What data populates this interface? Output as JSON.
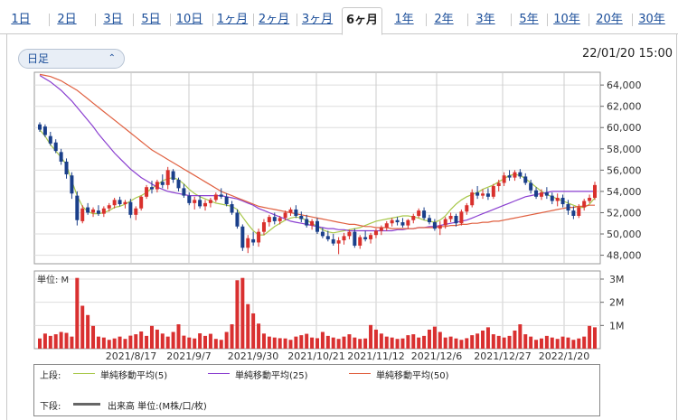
{
  "tabs": [
    "1日",
    "2日",
    "3日",
    "5日",
    "10日",
    "1ヶ月",
    "2ヶ月",
    "3ヶ月",
    "6ヶ月",
    "1年",
    "2年",
    "3年",
    "5年",
    "10年",
    "20年",
    "30年"
  ],
  "active_tab": "6ヶ月",
  "period_select": {
    "value": "日足",
    "icon": "chevron-updown-icon"
  },
  "timestamp": "22/01/20 15:00",
  "colors": {
    "up": "#d9302c",
    "down": "#1a3f8a",
    "ma5": "#a8c84a",
    "ma25": "#8a3fd0",
    "ma50": "#e06040",
    "volume": "#d93030",
    "link": "#1a4d99"
  },
  "chart_data": {
    "type": "candlestick",
    "price_axis": {
      "ylim": [
        47200,
        65200
      ],
      "ticks": [
        "48,000",
        "50,000",
        "52,000",
        "54,000",
        "56,000",
        "58,000",
        "60,000",
        "62,000",
        "64,000"
      ],
      "tick_values": [
        48000,
        50000,
        52000,
        54000,
        56000,
        58000,
        60000,
        62000,
        64000
      ]
    },
    "x_tick_labels": [
      "2021/8/17",
      "2021/9/7",
      "2021/9/30",
      "2021/10/21",
      "2021/11/12",
      "2021/12/6",
      "2021/12/27",
      "2022/1/20"
    ],
    "volume_axis": {
      "unit_label": "単位: M",
      "ticks": [
        "1M",
        "2M",
        "3M"
      ],
      "tick_values": [
        1,
        2,
        3
      ],
      "ylim": [
        0,
        3.35
      ]
    },
    "series": [
      {
        "name": "単純移動平均(5)",
        "values": [
          59800,
          59200,
          58400,
          57800,
          57200,
          56500,
          55000,
          53600,
          52600,
          52100,
          51900,
          51900,
          52000,
          52200,
          52500,
          52600,
          52800,
          53100,
          53400,
          53600,
          53900,
          54300,
          54600,
          55000,
          55200,
          55300,
          55100,
          54700,
          54200,
          53800,
          53500,
          53300,
          53100,
          52900,
          52800,
          52700,
          52600,
          52300,
          51600,
          50900,
          50300,
          49900,
          49900,
          50300,
          50700,
          51000,
          51300,
          51500,
          51600,
          51500,
          51300,
          51000,
          50700,
          50400,
          50200,
          50100,
          50200,
          50300,
          50400,
          50500,
          50600,
          50800,
          51000,
          51200,
          51300,
          51400,
          51500,
          51600,
          51700,
          51700,
          51600,
          51500,
          51300,
          51200,
          51100,
          51300,
          51700,
          52300,
          52800,
          53200,
          53500,
          53700,
          53900,
          54200,
          54400,
          54600,
          54900,
          55200,
          55500,
          55600,
          55500,
          55200,
          54800,
          54400,
          54000,
          53700,
          53500,
          53300,
          53100,
          52900,
          52700,
          52500,
          52500,
          52800,
          53400
        ]
      },
      {
        "name": "単純移動平均(25)",
        "values": [
          64900,
          64600,
          64300,
          63900,
          63500,
          63000,
          62500,
          61900,
          61300,
          60700,
          60100,
          59400,
          58800,
          58200,
          57600,
          57100,
          56600,
          56100,
          55700,
          55300,
          55000,
          54700,
          54400,
          54200,
          54000,
          53900,
          53800,
          53700,
          53600,
          53600,
          53600,
          53600,
          53600,
          53600,
          53600,
          53500,
          53400,
          53300,
          53100,
          52900,
          52700,
          52400,
          52200,
          52000,
          51800,
          51600,
          51400,
          51200,
          51100,
          51000,
          50900,
          50800,
          50700,
          50600,
          50500,
          50500,
          50400,
          50400,
          50300,
          50300,
          50300,
          50300,
          50300,
          50300,
          50300,
          50300,
          50300,
          50400,
          50400,
          50500,
          50500,
          50600,
          50600,
          50700,
          50700,
          50800,
          50900,
          51000,
          51100,
          51200,
          51300,
          51500,
          51700,
          51900,
          52100,
          52300,
          52500,
          52700,
          52900,
          53100,
          53300,
          53500,
          53600,
          53700,
          53800,
          53900,
          54000,
          54000,
          54000,
          54000,
          54000,
          54000,
          54000,
          54000,
          54000
        ]
      },
      {
        "name": "単純移動平均(50)",
        "values": [
          65000,
          64900,
          64800,
          64600,
          64400,
          64100,
          63800,
          63500,
          63100,
          62700,
          62300,
          61900,
          61500,
          61100,
          60700,
          60300,
          59900,
          59500,
          59100,
          58700,
          58300,
          57900,
          57600,
          57300,
          57000,
          56700,
          56400,
          56100,
          55800,
          55500,
          55200,
          54900,
          54600,
          54300,
          54000,
          53800,
          53600,
          53400,
          53200,
          53000,
          52800,
          52600,
          52500,
          52400,
          52300,
          52200,
          52100,
          52000,
          51900,
          51800,
          51700,
          51600,
          51500,
          51400,
          51300,
          51200,
          51100,
          51000,
          50900,
          50900,
          50800,
          50700,
          50700,
          50600,
          50600,
          50600,
          50500,
          50500,
          50500,
          50500,
          50500,
          50600,
          50600,
          50600,
          50600,
          50700,
          50700,
          50800,
          50800,
          50900,
          50900,
          51000,
          51000,
          51100,
          51100,
          51200,
          51200,
          51300,
          51400,
          51500,
          51600,
          51700,
          51800,
          51900,
          52000,
          52100,
          52200,
          52300,
          52400,
          52500,
          52500,
          52600,
          52600,
          52700,
          52700
        ]
      }
    ],
    "candles": [
      [
        60300,
        60500,
        59600,
        59800
      ],
      [
        60100,
        60300,
        59100,
        59300
      ],
      [
        59200,
        59600,
        58300,
        58500
      ],
      [
        58600,
        58900,
        57600,
        57800
      ],
      [
        57700,
        58000,
        56500,
        56800
      ],
      [
        56800,
        57100,
        55200,
        55600
      ],
      [
        55500,
        55800,
        53300,
        53800
      ],
      [
        53600,
        54000,
        50800,
        51300
      ],
      [
        51200,
        52700,
        51000,
        52400
      ],
      [
        52500,
        52900,
        51800,
        52000
      ],
      [
        52000,
        52500,
        51600,
        52300
      ],
      [
        52200,
        52700,
        51700,
        51900
      ],
      [
        51900,
        52600,
        51600,
        52400
      ],
      [
        52400,
        52900,
        52100,
        52700
      ],
      [
        52700,
        53400,
        52400,
        53200
      ],
      [
        53200,
        53500,
        52600,
        52800
      ],
      [
        52800,
        53200,
        52400,
        53000
      ],
      [
        53000,
        53300,
        51500,
        51800
      ],
      [
        51800,
        52600,
        51300,
        52400
      ],
      [
        52400,
        53600,
        52200,
        53500
      ],
      [
        53500,
        54600,
        53300,
        54400
      ],
      [
        54400,
        55000,
        53800,
        54200
      ],
      [
        54200,
        55100,
        53900,
        54900
      ],
      [
        54900,
        55600,
        54300,
        54600
      ],
      [
        54600,
        56300,
        54200,
        56000
      ],
      [
        55900,
        56100,
        54800,
        55100
      ],
      [
        55100,
        55300,
        54000,
        54300
      ],
      [
        54300,
        54700,
        53400,
        53600
      ],
      [
        53600,
        53900,
        52700,
        52900
      ],
      [
        52900,
        53500,
        52300,
        53200
      ],
      [
        53200,
        53600,
        52400,
        52600
      ],
      [
        52600,
        53200,
        52200,
        52900
      ],
      [
        52900,
        53400,
        52500,
        53200
      ],
      [
        53200,
        53900,
        53000,
        53700
      ],
      [
        53700,
        54300,
        53300,
        53500
      ],
      [
        53500,
        53800,
        52600,
        52800
      ],
      [
        52800,
        53100,
        51800,
        52000
      ],
      [
        52000,
        52300,
        50500,
        50700
      ],
      [
        50700,
        50900,
        48400,
        48700
      ],
      [
        48700,
        49900,
        48200,
        49600
      ],
      [
        49500,
        50200,
        48900,
        49200
      ],
      [
        49200,
        50500,
        48800,
        50200
      ],
      [
        50200,
        51400,
        49900,
        51100
      ],
      [
        51100,
        51800,
        50700,
        51600
      ],
      [
        51600,
        52000,
        50900,
        51200
      ],
      [
        51200,
        51700,
        50900,
        51500
      ],
      [
        51500,
        52200,
        51300,
        52000
      ],
      [
        52000,
        52500,
        51700,
        52300
      ],
      [
        52300,
        52700,
        51500,
        51700
      ],
      [
        51700,
        52100,
        51100,
        51400
      ],
      [
        51400,
        51800,
        50600,
        50800
      ],
      [
        50800,
        51400,
        50400,
        51200
      ],
      [
        51200,
        51500,
        50000,
        50200
      ],
      [
        50200,
        50600,
        49600,
        49800
      ],
      [
        49800,
        50300,
        49300,
        49500
      ],
      [
        49500,
        50000,
        48900,
        49100
      ],
      [
        49100,
        49700,
        48100,
        49400
      ],
      [
        49400,
        50100,
        49000,
        49800
      ],
      [
        49800,
        50400,
        49500,
        50200
      ],
      [
        50200,
        50500,
        48700,
        48900
      ],
      [
        48900,
        49900,
        48600,
        49700
      ],
      [
        49700,
        50300,
        49300,
        49500
      ],
      [
        49500,
        50100,
        49100,
        49900
      ],
      [
        49900,
        50500,
        49600,
        50300
      ],
      [
        50300,
        50800,
        49900,
        50600
      ],
      [
        50600,
        51200,
        50300,
        51000
      ],
      [
        51000,
        51500,
        50700,
        51300
      ],
      [
        51300,
        51600,
        50800,
        51100
      ],
      [
        51100,
        51500,
        50600,
        50800
      ],
      [
        50800,
        51400,
        50500,
        51300
      ],
      [
        51300,
        51900,
        51000,
        51700
      ],
      [
        51700,
        52400,
        51500,
        52200
      ],
      [
        52200,
        52500,
        51300,
        51500
      ],
      [
        51500,
        51800,
        50900,
        51100
      ],
      [
        51100,
        51400,
        50300,
        50500
      ],
      [
        50500,
        51200,
        49900,
        50800
      ],
      [
        50800,
        51600,
        50500,
        51400
      ],
      [
        51400,
        52000,
        51100,
        51700
      ],
      [
        51700,
        51900,
        50700,
        51000
      ],
      [
        51000,
        52300,
        50800,
        52100
      ],
      [
        52100,
        52900,
        51800,
        52700
      ],
      [
        52700,
        54200,
        52500,
        53900
      ],
      [
        53900,
        54500,
        53300,
        53600
      ],
      [
        53600,
        54200,
        53300,
        53800
      ],
      [
        53800,
        54300,
        53200,
        53500
      ],
      [
        53500,
        54700,
        53300,
        54500
      ],
      [
        54500,
        55100,
        54000,
        54800
      ],
      [
        54800,
        55800,
        54500,
        55500
      ],
      [
        55500,
        56000,
        55000,
        55300
      ],
      [
        55300,
        56000,
        55000,
        55800
      ],
      [
        55800,
        56100,
        55200,
        55400
      ],
      [
        55400,
        55700,
        54600,
        54800
      ],
      [
        54800,
        55100,
        53800,
        54100
      ],
      [
        54100,
        54400,
        53300,
        53500
      ],
      [
        53500,
        54200,
        53200,
        53900
      ],
      [
        53900,
        54400,
        53300,
        53600
      ],
      [
        53600,
        53900,
        52800,
        53100
      ],
      [
        53100,
        53800,
        52600,
        53400
      ],
      [
        53400,
        53700,
        52500,
        52800
      ],
      [
        52800,
        53200,
        51800,
        52200
      ],
      [
        52200,
        52600,
        51400,
        51700
      ],
      [
        51700,
        52800,
        51500,
        52500
      ],
      [
        52500,
        53300,
        52200,
        53100
      ],
      [
        53100,
        53700,
        52900,
        53400
      ],
      [
        53400,
        54900,
        53200,
        54600
      ]
    ],
    "volume": [
      0.44,
      0.65,
      0.55,
      0.62,
      0.72,
      0.68,
      0.52,
      3.05,
      1.85,
      1.45,
      0.98,
      0.52,
      0.48,
      0.38,
      0.44,
      0.52,
      0.42,
      0.56,
      0.62,
      0.74,
      0.55,
      0.98,
      0.82,
      0.65,
      0.52,
      0.72,
      1.05,
      0.56,
      0.48,
      0.44,
      0.66,
      0.55,
      0.64,
      0.42,
      0.38,
      0.72,
      1.05,
      2.95,
      3.05,
      1.92,
      1.52,
      1.08,
      0.65,
      0.52,
      0.48,
      0.45,
      0.44,
      0.38,
      0.52,
      0.58,
      0.64,
      0.48,
      0.45,
      0.72,
      0.55,
      0.48,
      0.42,
      0.52,
      0.62,
      0.48,
      0.42,
      0.44,
      1.02,
      0.82,
      0.65,
      0.52,
      0.48,
      0.42,
      0.44,
      0.58,
      0.62,
      0.48,
      0.55,
      0.82,
      0.95,
      0.72,
      0.48,
      0.52,
      0.44,
      0.38,
      0.45,
      0.58,
      0.65,
      0.78,
      0.92,
      0.62,
      0.55,
      0.48,
      0.55,
      0.78,
      1.05,
      0.62,
      0.52,
      0.38,
      0.44,
      0.55,
      0.48,
      0.42,
      0.52,
      0.48,
      0.38,
      0.44,
      0.52,
      0.98,
      0.92
    ]
  },
  "legend": {
    "upper_label": "上段:",
    "lower_label": "下段:",
    "ma5_label": "単純移動平均(5)",
    "ma25_label": "単純移動平均(25)",
    "ma50_label": "単純移動平均(50)",
    "volume_label": "出来高 単位:(M株/口/枚)"
  }
}
